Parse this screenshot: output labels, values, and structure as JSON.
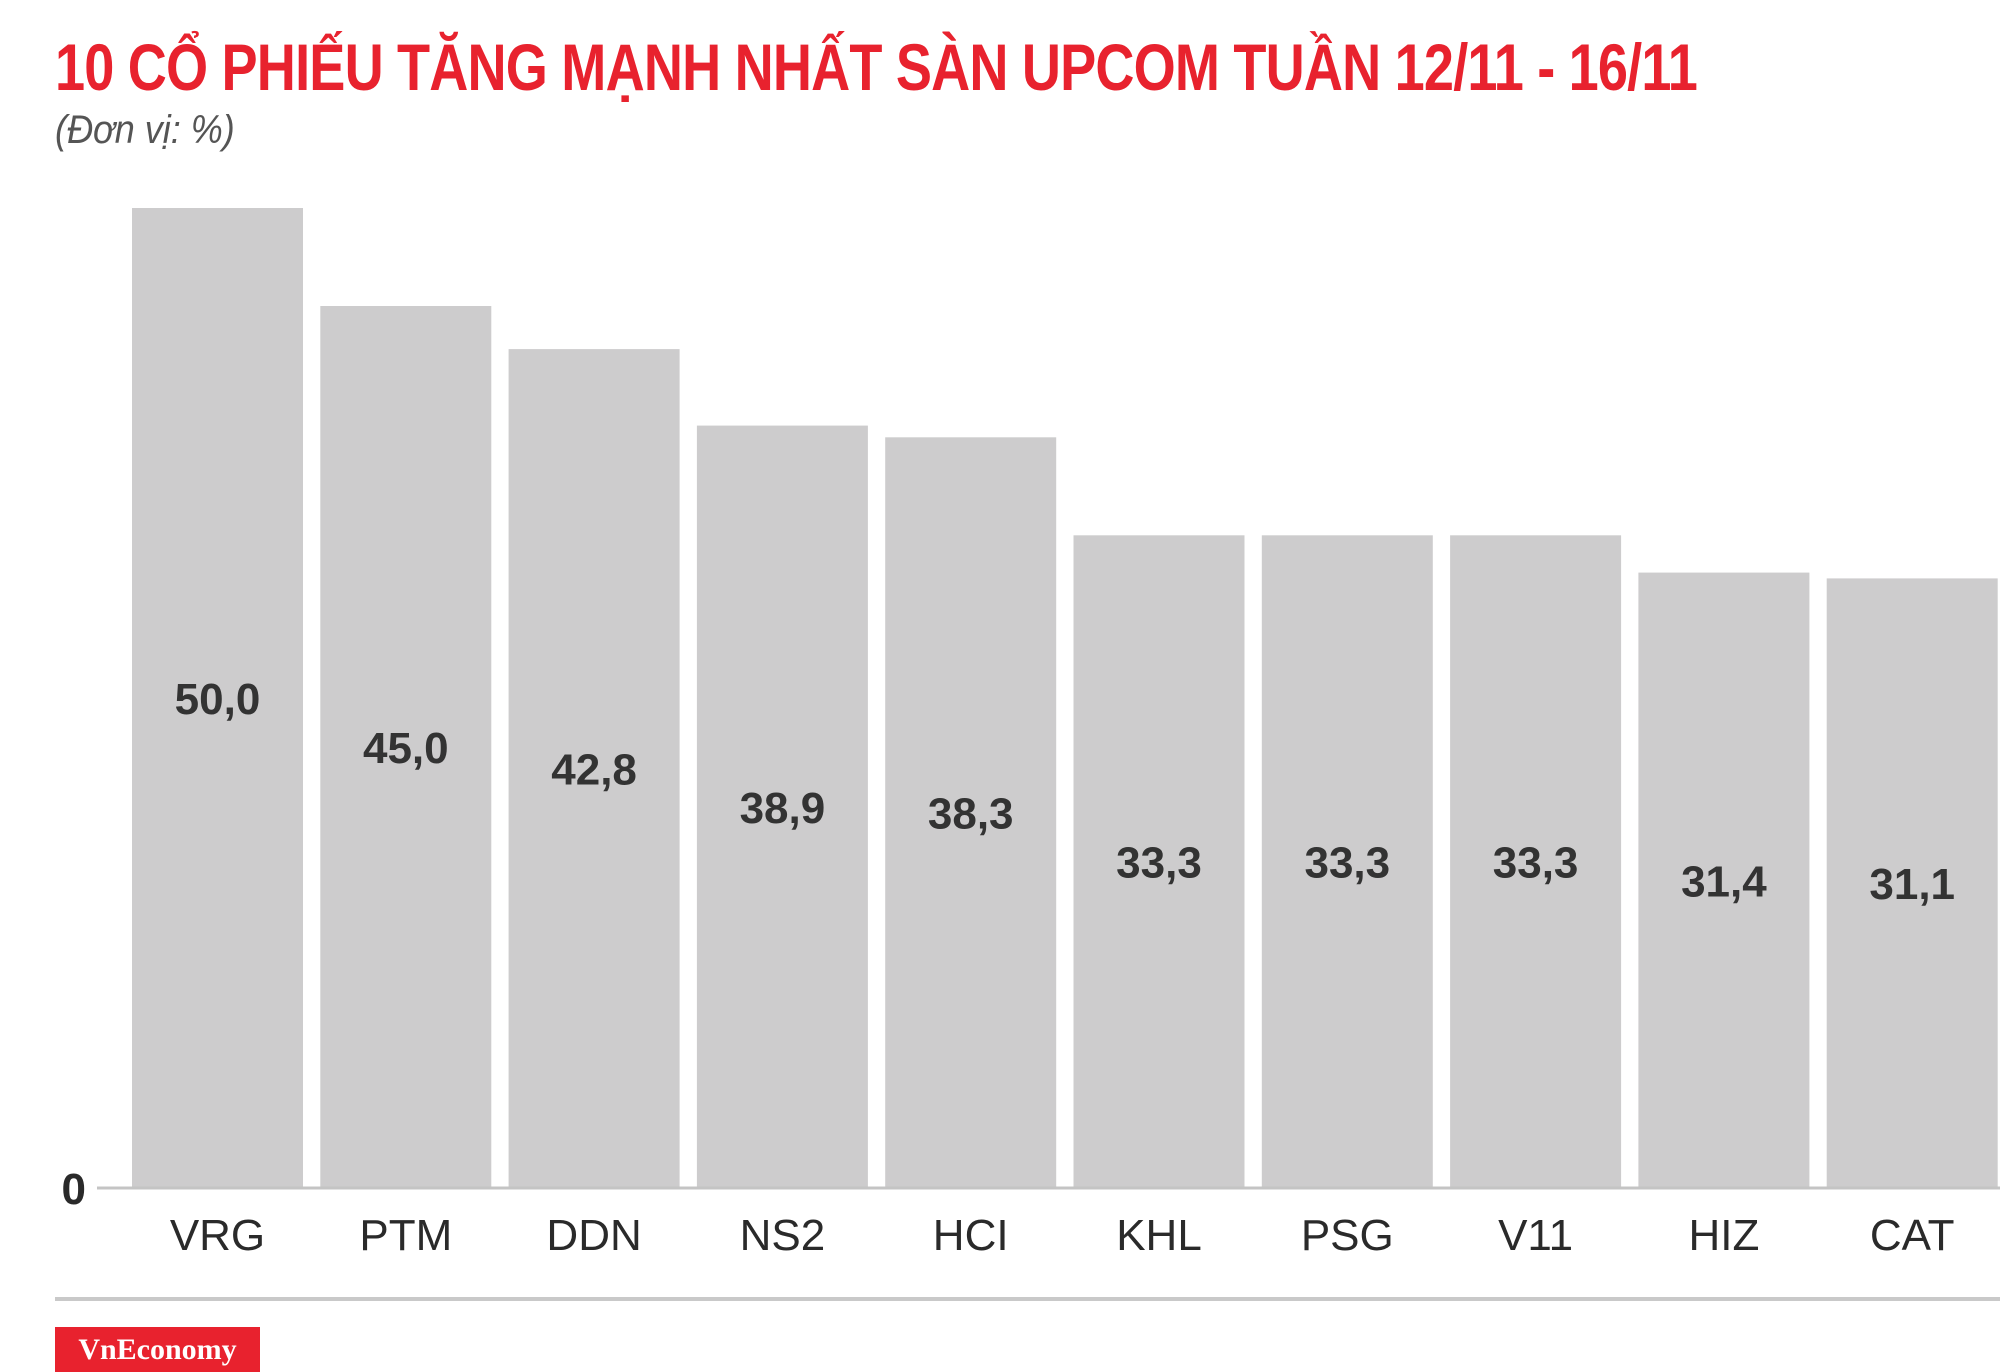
{
  "header": {
    "title": "10 CỔ PHIẾU TĂNG MẠNH NHẤT SÀN UPCOM TUẦN 12/11 - 16/11",
    "unit": "(Đơn vị: %)"
  },
  "brand": {
    "logo_text": "VnEconomy"
  },
  "colors": {
    "title": "#e8222e",
    "bar": "#cdcccd",
    "logo_bg": "#e8222e"
  },
  "chart_data": {
    "type": "bar",
    "categories": [
      "VRG",
      "PTM",
      "DDN",
      "NS2",
      "HCI",
      "KHL",
      "PSG",
      "V11",
      "HIZ",
      "CAT"
    ],
    "values": [
      50.0,
      45.0,
      42.8,
      38.9,
      38.3,
      33.3,
      33.3,
      33.3,
      31.4,
      31.1
    ],
    "value_labels": [
      "50,0",
      "45,0",
      "42,8",
      "38,9",
      "38,3",
      "33,3",
      "33,3",
      "33,3",
      "31,4",
      "31,1"
    ],
    "title": "10 CỔ PHIẾU TĂNG MẠNH NHẤT SÀN UPCOM TUẦN 12/11 - 16/11",
    "xlabel": "",
    "ylabel": "",
    "ylim": [
      0,
      50
    ],
    "y_tick_labels": [
      "0"
    ],
    "grid": false,
    "legend": "none"
  }
}
